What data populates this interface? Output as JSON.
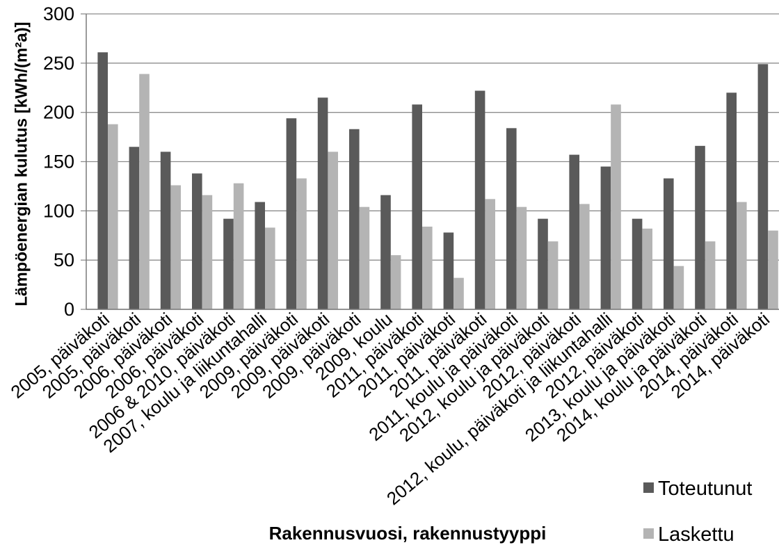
{
  "chart_data": {
    "type": "bar",
    "categories": [
      "2005, päiväkoti",
      "2005, päiväkoti",
      "2006, päiväkoti",
      "2006, päiväkoti",
      "2006 & 2010, päiväkoti",
      "2007, koulu ja liikuntahalli",
      "2009, päiväkoti",
      "2009, päiväkoti",
      "2009, päiväkoti",
      "2009, koulu",
      "2011, päiväkoti",
      "2011, päiväkoti",
      "2011, päiväkoti",
      "2011, koulu ja päiväkoti",
      "2012, koulu ja päiväkoti",
      "2012, päiväkoti",
      "2012, koulu, päiväkoti ja liikuntahalli",
      "2012, päiväkoti",
      "2013, koulu ja päiväkoti",
      "2014, koulu ja päiväkoti",
      "2014, päiväkoti",
      "2014, päiväkoti"
    ],
    "series": [
      {
        "name": "Toteutunut",
        "color": "#5a5a5a",
        "values": [
          261,
          165,
          160,
          138,
          92,
          109,
          194,
          215,
          183,
          116,
          208,
          78,
          222,
          184,
          92,
          157,
          145,
          92,
          133,
          166,
          220,
          249
        ]
      },
      {
        "name": "Laskettu",
        "color": "#b4b4b4",
        "values": [
          188,
          239,
          126,
          116,
          128,
          83,
          133,
          160,
          104,
          55,
          84,
          32,
          112,
          104,
          69,
          107,
          208,
          82,
          44,
          69,
          109,
          80
        ]
      }
    ],
    "xlabel": "Rakennusvuosi, rakennustyyppi",
    "ylabel": "Lämpöenergian kulutus [kWh/(m²a)]",
    "ylim": [
      0,
      300
    ],
    "yticks": [
      0,
      50,
      100,
      150,
      200,
      250,
      300
    ],
    "grid": true,
    "legend": "bottom-right"
  }
}
